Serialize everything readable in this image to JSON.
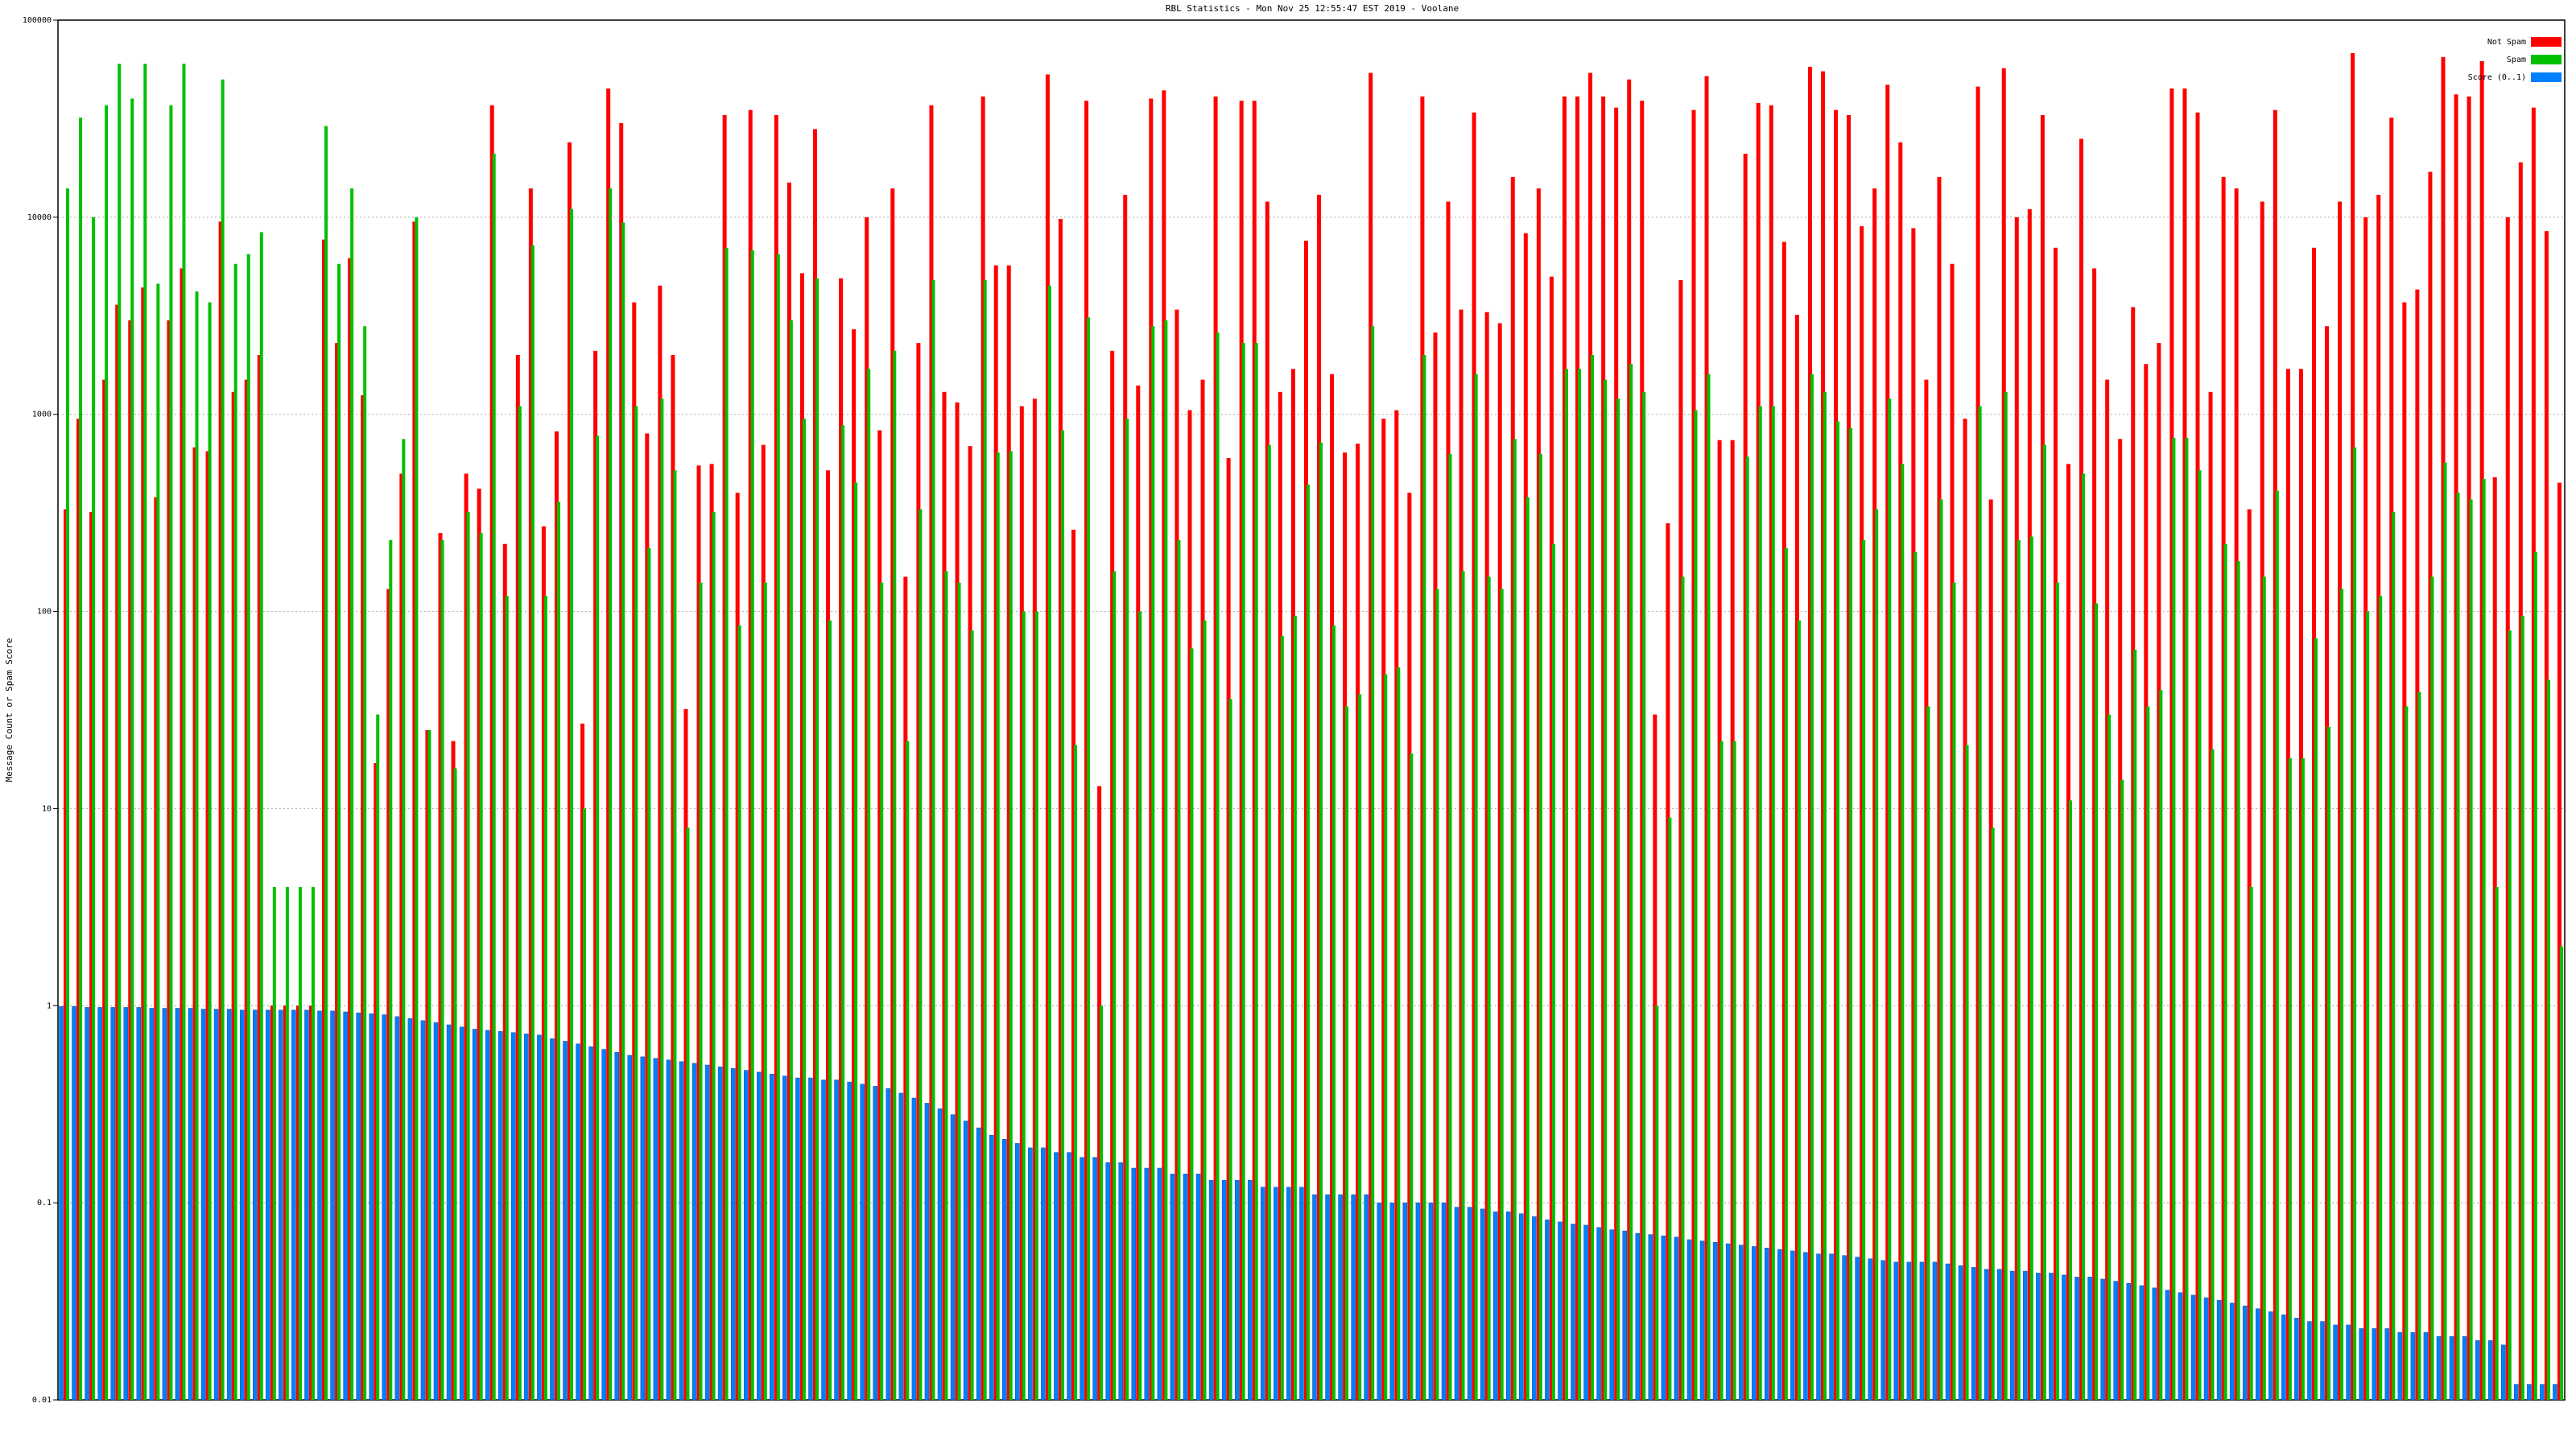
{
  "chart_data": {
    "type": "bar",
    "title": "RBL Statistics - Mon Nov 25 12:55:47 EST 2019 - Voolane",
    "y_label": "Message Count or Spam Score",
    "log_scale": true,
    "grid": true,
    "legend": "top-right",
    "ylim": [
      0.01,
      100000
    ],
    "yticks": [
      100000,
      10000,
      1000,
      100,
      10,
      1,
      0.1,
      0.01
    ],
    "categories": [
      null,
      null,
      null,
      null,
      null,
      null,
      null,
      null,
      null,
      null,
      null,
      null,
      null,
      null,
      null,
      null,
      null,
      null,
      null,
      null,
      null,
      null,
      null,
      null,
      null,
      null,
      null,
      null,
      null,
      null,
      null,
      null,
      null,
      null,
      null,
      null,
      null,
      null,
      null,
      null,
      null,
      null,
      null,
      null,
      null,
      null,
      null,
      null,
      null,
      null,
      null,
      null,
      null,
      null,
      null,
      null,
      null,
      null,
      null,
      null,
      null,
      null,
      null,
      null,
      null,
      null,
      null,
      null,
      null,
      null,
      null,
      null,
      null,
      null,
      null,
      null,
      null,
      null,
      null,
      null,
      null,
      null,
      null,
      null,
      null,
      null,
      null,
      null,
      null,
      null,
      null,
      null,
      null,
      null,
      null,
      null,
      null,
      null,
      null,
      null,
      null,
      null,
      null,
      null,
      null,
      null,
      null,
      null,
      null,
      null,
      null,
      null,
      null,
      null,
      null,
      null,
      null,
      null,
      null,
      null,
      null,
      null,
      null,
      null,
      null,
      null,
      null,
      null,
      null,
      null,
      null,
      null,
      null,
      null,
      null,
      null,
      null,
      null,
      null,
      null,
      null,
      null,
      null,
      null,
      null,
      null,
      null,
      null,
      null,
      null,
      null,
      null,
      null,
      null,
      null,
      null,
      null,
      null,
      null,
      null,
      null,
      null,
      null,
      null,
      null,
      null,
      null,
      null,
      null,
      null,
      null,
      null,
      null,
      null,
      null,
      null,
      null,
      null,
      null,
      null,
      null,
      null,
      null,
      null,
      null,
      null,
      null,
      null,
      null,
      null,
      null,
      null,
      null,
      null
    ],
    "series": [
      {
        "name": "Not Spam",
        "color": "#ff0000",
        "values": [
          330,
          950,
          320,
          1500,
          3600,
          3000,
          4400,
          380,
          3000,
          5500,
          680,
          650,
          9500,
          1300,
          1500,
          2000,
          1,
          1,
          1,
          1,
          7700,
          2300,
          6200,
          1250,
          17,
          130,
          500,
          9500,
          25,
          250,
          22,
          500,
          420,
          37000,
          220,
          2000,
          14000,
          270,
          820,
          24000,
          27,
          2100,
          45000,
          30000,
          3700,
          800,
          4500,
          2000,
          32,
          550,
          560,
          33000,
          400,
          35000,
          700,
          33000,
          15000,
          5200,
          28000,
          520,
          4900,
          2700,
          10000,
          830,
          14000,
          150,
          2300,
          37000,
          1300,
          1150,
          690,
          41000,
          5700,
          5700,
          1100,
          1200,
          53000,
          9800,
          260,
          39000,
          13,
          2100,
          13000,
          1400,
          40000,
          44000,
          3400,
          1050,
          1500,
          41000,
          600,
          39000,
          39000,
          12000,
          1300,
          1700,
          7600,
          13000,
          1600,
          640,
          710,
          54000,
          950,
          1050,
          400,
          41000,
          2600,
          12000,
          3400,
          34000,
          3300,
          2900,
          16000,
          8300,
          14000,
          5000,
          41000,
          41000,
          54000,
          41000,
          36000,
          50000,
          39000,
          30,
          280,
          4800,
          35000,
          52000,
          740,
          740,
          21000,
          38000,
          37000,
          7500,
          3200,
          58000,
          55000,
          35000,
          33000,
          9000,
          14000,
          47000,
          24000,
          8800,
          1500,
          16000,
          5800,
          950,
          46000,
          370,
          57000,
          10000,
          11000,
          33000,
          7000,
          560,
          25000,
          5500,
          1500,
          750,
          3500,
          1800,
          2300,
          45000,
          45000,
          34000,
          1300,
          16000,
          14000,
          330,
          12000,
          35000,
          1700,
          1700,
          7000,
          2800,
          12000,
          68000,
          10000,
          13000,
          32000,
          3700,
          4300,
          17000,
          65000,
          42000,
          41000,
          62000,
          480,
          10000,
          19000,
          36000,
          8500,
          450
        ]
      },
      {
        "name": "Spam",
        "color": "#00c000",
        "values": [
          14000,
          32000,
          10000,
          37000,
          60000,
          40000,
          60000,
          4600,
          37000,
          60000,
          4200,
          3700,
          50000,
          5800,
          6500,
          8400,
          4,
          4,
          4,
          4,
          29000,
          5800,
          14000,
          2800,
          30,
          230,
          750,
          10000,
          25,
          230,
          16,
          320,
          250,
          21000,
          120,
          1100,
          7200,
          120,
          360,
          11000,
          10,
          780,
          14000,
          9400,
          1100,
          210,
          1200,
          520,
          8,
          140,
          320,
          7000,
          85,
          6800,
          140,
          6500,
          3000,
          950,
          4900,
          90,
          880,
          450,
          1700,
          140,
          2100,
          22,
          330,
          4800,
          160,
          140,
          80,
          4800,
          640,
          650,
          100,
          100,
          4500,
          830,
          21,
          3100,
          1,
          160,
          950,
          100,
          2800,
          3000,
          230,
          65,
          90,
          2600,
          36,
          2300,
          2300,
          700,
          75,
          95,
          440,
          720,
          85,
          33,
          38,
          2800,
          48,
          52,
          19,
          2000,
          130,
          630,
          160,
          1600,
          150,
          130,
          750,
          380,
          630,
          220,
          1700,
          1700,
          2000,
          1500,
          1200,
          1800,
          1300,
          1,
          9,
          150,
          1050,
          1600,
          22,
          22,
          610,
          1100,
          1100,
          210,
          90,
          1600,
          1300,
          920,
          850,
          230,
          330,
          1200,
          560,
          200,
          33,
          370,
          140,
          21,
          1100,
          8,
          1300,
          230,
          240,
          700,
          140,
          11,
          500,
          110,
          30,
          14,
          64,
          33,
          40,
          760,
          760,
          520,
          20,
          220,
          180,
          4,
          150,
          410,
          18,
          18,
          73,
          26,
          130,
          680,
          100,
          120,
          320,
          33,
          39,
          150,
          570,
          400,
          370,
          470,
          4,
          80,
          95,
          200,
          45,
          2
        ]
      },
      {
        "name": "Score (0..1)",
        "color": "#0080ff",
        "values": [
          0.99,
          0.99,
          0.98,
          0.98,
          0.98,
          0.98,
          0.98,
          0.97,
          0.97,
          0.97,
          0.97,
          0.96,
          0.96,
          0.96,
          0.95,
          0.95,
          0.95,
          0.95,
          0.95,
          0.95,
          0.94,
          0.94,
          0.93,
          0.92,
          0.91,
          0.9,
          0.88,
          0.86,
          0.84,
          0.82,
          0.8,
          0.78,
          0.76,
          0.75,
          0.74,
          0.73,
          0.72,
          0.71,
          0.68,
          0.66,
          0.64,
          0.62,
          0.6,
          0.58,
          0.56,
          0.55,
          0.54,
          0.53,
          0.52,
          0.51,
          0.5,
          0.49,
          0.48,
          0.47,
          0.46,
          0.45,
          0.44,
          0.43,
          0.43,
          0.42,
          0.42,
          0.41,
          0.4,
          0.39,
          0.38,
          0.36,
          0.34,
          0.32,
          0.3,
          0.28,
          0.26,
          0.24,
          0.22,
          0.21,
          0.2,
          0.19,
          0.19,
          0.18,
          0.18,
          0.17,
          0.17,
          0.16,
          0.16,
          0.15,
          0.15,
          0.15,
          0.14,
          0.14,
          0.14,
          0.13,
          0.13,
          0.13,
          0.13,
          0.12,
          0.12,
          0.12,
          0.12,
          0.11,
          0.11,
          0.11,
          0.11,
          0.11,
          0.1,
          0.1,
          0.1,
          0.1,
          0.1,
          0.1,
          0.095,
          0.095,
          0.093,
          0.09,
          0.09,
          0.088,
          0.085,
          0.082,
          0.08,
          0.078,
          0.077,
          0.075,
          0.073,
          0.072,
          0.07,
          0.069,
          0.068,
          0.067,
          0.065,
          0.064,
          0.063,
          0.062,
          0.061,
          0.06,
          0.059,
          0.058,
          0.057,
          0.056,
          0.055,
          0.055,
          0.054,
          0.053,
          0.052,
          0.051,
          0.05,
          0.05,
          0.05,
          0.05,
          0.049,
          0.048,
          0.047,
          0.046,
          0.046,
          0.045,
          0.045,
          0.044,
          0.044,
          0.043,
          0.042,
          0.042,
          0.041,
          0.04,
          0.039,
          0.038,
          0.037,
          0.036,
          0.035,
          0.034,
          0.033,
          0.032,
          0.031,
          0.03,
          0.029,
          0.028,
          0.027,
          0.026,
          0.025,
          0.025,
          0.024,
          0.024,
          0.023,
          0.023,
          0.023,
          0.022,
          0.022,
          0.022,
          0.021,
          0.021,
          0.021,
          0.02,
          0.02,
          0.019,
          0.012,
          0.012,
          0.012,
          0.012
        ]
      }
    ]
  }
}
